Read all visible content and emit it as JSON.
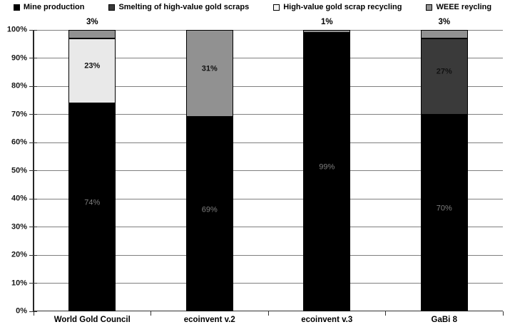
{
  "colors": {
    "mine_production": "#000000",
    "smelting": "#3a3a3a",
    "hv_scrap_recycling": "#e9e9e9",
    "weee": "#919191",
    "gridline": "#7f7f7f",
    "axis": "#333333",
    "label_on_black": "#7f7f7f",
    "label_on_gray": "#111111"
  },
  "legend": {
    "items": [
      {
        "name": "mine-production",
        "label": "Mine production",
        "fill": "#000000"
      },
      {
        "name": "smelting-of-high-value-gold-scraps",
        "label": "Smelting of high-value gold scraps",
        "fill": "#3a3a3a"
      },
      {
        "name": "high-value-gold-scrap-recycling",
        "label": "High-value gold scrap recycling",
        "fill": "#f5f5f5"
      },
      {
        "name": "weee-reycling",
        "label": "WEEE reycling",
        "fill": "#919191"
      }
    ]
  },
  "chart_data": {
    "type": "bar",
    "stacked": true,
    "title": "",
    "xlabel": "",
    "ylabel": "",
    "ylim": [
      0,
      100
    ],
    "ytick_step": 10,
    "ytick_labels": [
      "0%",
      "10%",
      "20%",
      "30%",
      "40%",
      "50%",
      "60%",
      "70%",
      "80%",
      "90%",
      "100%"
    ],
    "grid": true,
    "legend_position": "top",
    "categories": [
      "World Gold Council",
      "ecoinvent v.2",
      "ecoinvent v.3",
      "GaBi 8"
    ],
    "series": [
      {
        "name": "Mine production",
        "color": "#000000",
        "border": "#000000",
        "label_color": "#7f7f7f",
        "label_bold": false,
        "values": [
          74,
          69,
          99,
          70
        ]
      },
      {
        "name": "Smelting of high-value gold scraps",
        "color": "#3a3a3a",
        "border": "#000000",
        "label_color": "#111111",
        "label_bold": true,
        "values": [
          0,
          0,
          0,
          27
        ]
      },
      {
        "name": "High-value gold scrap recycling",
        "color": "#e9e9e9",
        "border": "#000000",
        "label_color": "#111111",
        "label_bold": true,
        "values": [
          23,
          0,
          0,
          0
        ]
      },
      {
        "name": "WEEE reycling",
        "color": "#919191",
        "border": "#000000",
        "label_color": "#111111",
        "label_bold": true,
        "values": [
          3,
          31,
          1,
          3
        ]
      }
    ],
    "inside_labels": [
      [
        "74%",
        "",
        "23%",
        ""
      ],
      [
        "69%",
        "",
        "",
        "31%"
      ],
      [
        "99%",
        "",
        "",
        ""
      ],
      [
        "70%",
        "27%",
        "",
        ""
      ]
    ],
    "above_labels": [
      "3%",
      "",
      "1%",
      "3%"
    ]
  }
}
